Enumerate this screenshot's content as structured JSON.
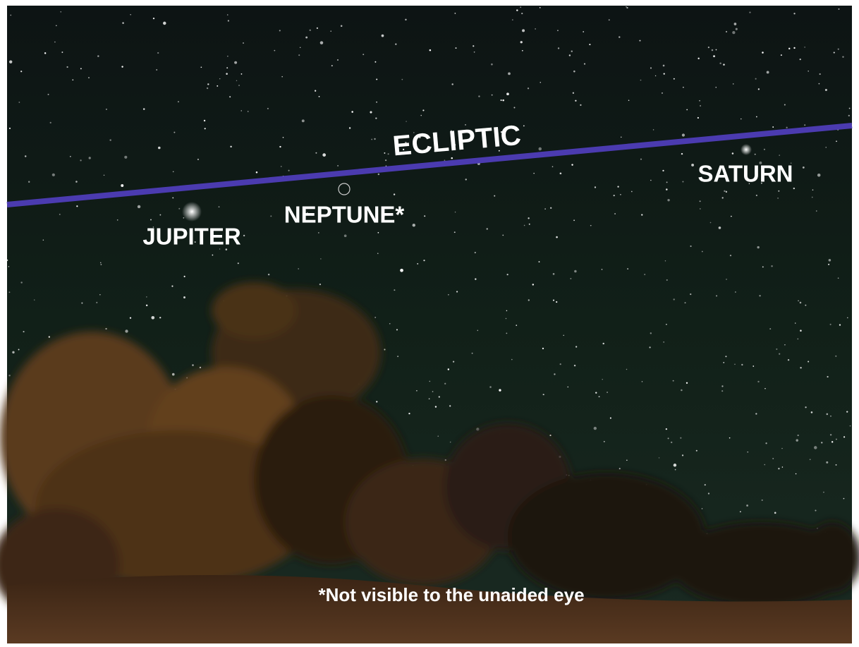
{
  "annotations": {
    "ecliptic": "ECLIPTIC",
    "jupiter": "JUPITER",
    "neptune": "NEPTUNE*",
    "saturn": "SATURN",
    "footnote": "*Not visible to the unaided eye"
  }
}
